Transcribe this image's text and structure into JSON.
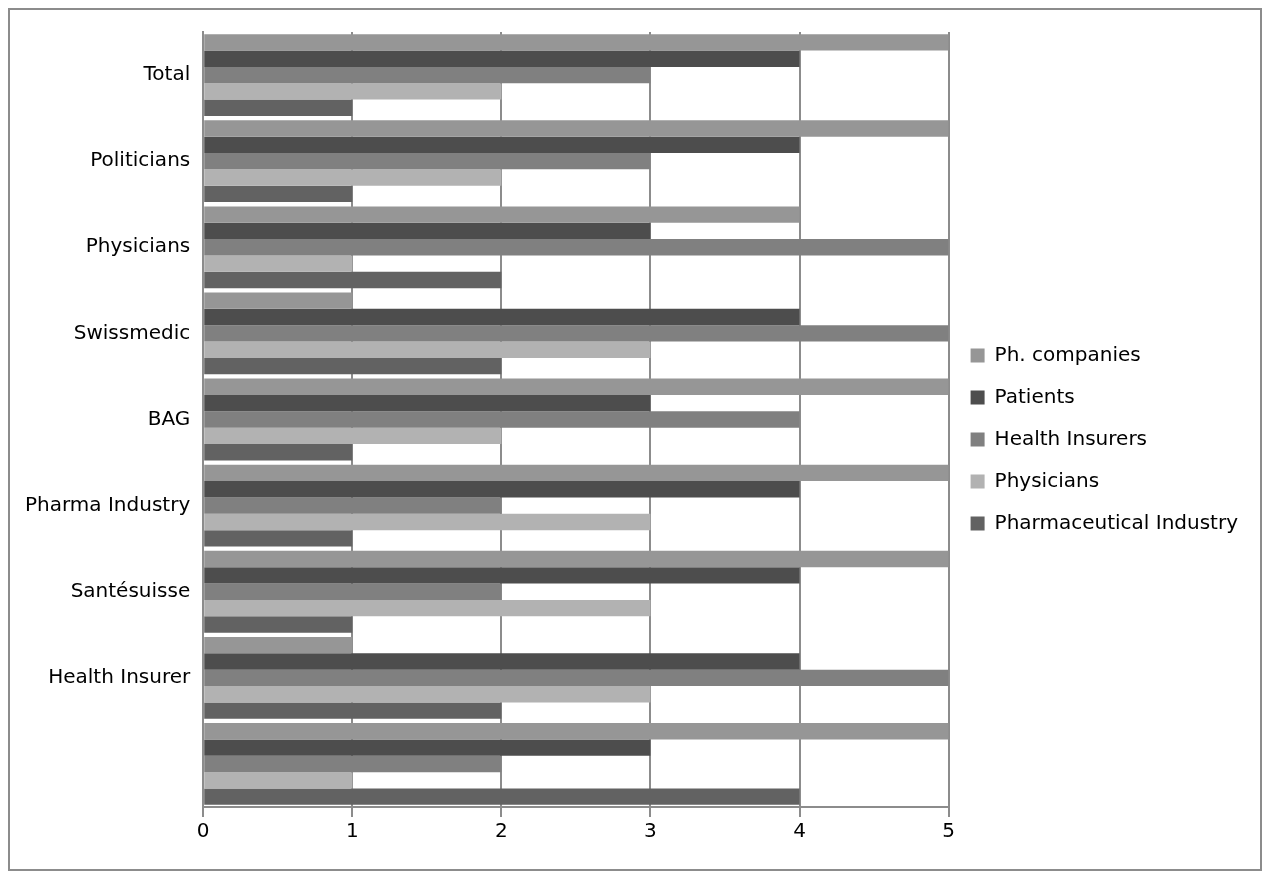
{
  "chart_data": {
    "type": "bar",
    "orientation": "horizontal",
    "categories": [
      "Total",
      "Politicians",
      "Physicians",
      "Swissmedic",
      "BAG",
      "Pharma Industry",
      "Santésuisse",
      "Health Insurer",
      null
    ],
    "series": [
      {
        "name": "Ph. companies",
        "color": "#969696",
        "values": [
          5,
          5,
          4,
          1,
          5,
          5,
          5,
          1,
          5
        ]
      },
      {
        "name": "Patients",
        "color": "#4d4d4d",
        "values": [
          4,
          4,
          3,
          4,
          3,
          4,
          4,
          4,
          3
        ]
      },
      {
        "name": "Health Insurers",
        "color": "#808080",
        "values": [
          3,
          3,
          5,
          5,
          4,
          2,
          2,
          5,
          2
        ]
      },
      {
        "name": "Physicians",
        "color": "#b2b2b2",
        "values": [
          2,
          2,
          1,
          3,
          2,
          3,
          3,
          3,
          1
        ]
      },
      {
        "name": "Pharmaceutical Industry",
        "color": "#626262",
        "values": [
          1,
          1,
          2,
          2,
          1,
          1,
          1,
          2,
          4
        ]
      }
    ],
    "xlim": [
      0,
      5
    ],
    "xticks": [
      0,
      1,
      2,
      3,
      4,
      5
    ],
    "grid": "x",
    "legend": "right"
  }
}
